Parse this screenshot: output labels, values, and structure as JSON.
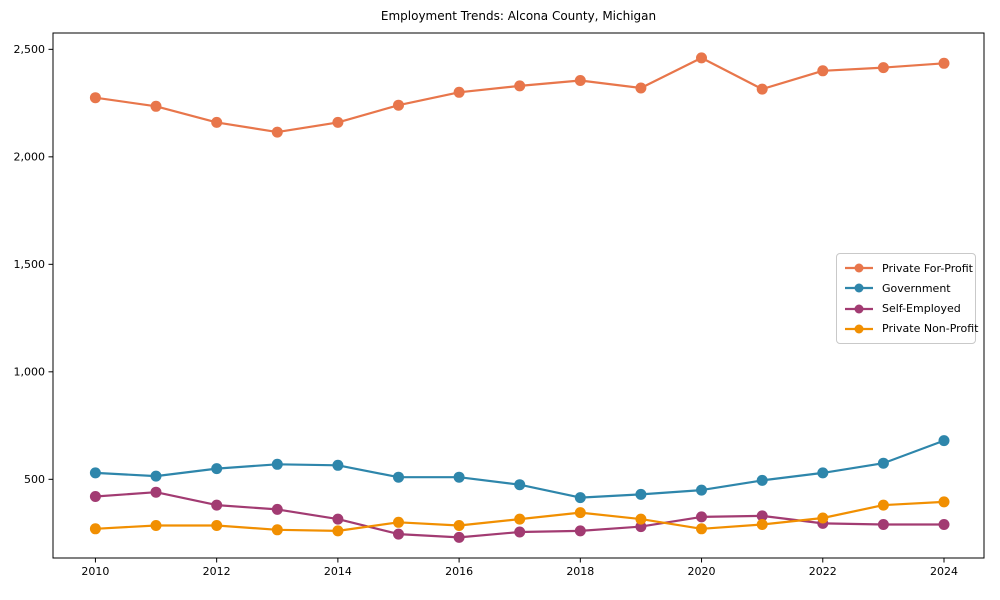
{
  "chart_data": {
    "type": "line",
    "title": "Employment Trends: Alcona County, Michigan",
    "xlabel": "",
    "ylabel": "",
    "x": [
      2010,
      2011,
      2012,
      2013,
      2014,
      2015,
      2016,
      2017,
      2018,
      2019,
      2020,
      2021,
      2022,
      2023,
      2024
    ],
    "x_ticks": [
      2010,
      2012,
      2014,
      2016,
      2018,
      2020,
      2022,
      2024
    ],
    "x_tick_labels": [
      "2010",
      "2012",
      "2014",
      "2016",
      "2018",
      "2020",
      "2022",
      "2024"
    ],
    "y_ticks": [
      500,
      1000,
      1500,
      2000,
      2500
    ],
    "y_tick_labels": [
      "500",
      "1,000",
      "1,500",
      "2,000",
      "2,500"
    ],
    "xlim": [
      2009.3,
      2024.66
    ],
    "ylim": [
      134,
      2576
    ],
    "grid": false,
    "marker": "circle",
    "legend_position": "center right",
    "series": [
      {
        "name": "Private For-Profit",
        "color": "#E8764B",
        "values": [
          2275,
          2235,
          2160,
          2115,
          2160,
          2240,
          2300,
          2330,
          2355,
          2320,
          2460,
          2315,
          2400,
          2415,
          2435
        ]
      },
      {
        "name": "Government",
        "color": "#2E86AB",
        "values": [
          530,
          515,
          550,
          570,
          565,
          510,
          510,
          475,
          415,
          430,
          450,
          495,
          530,
          575,
          680
        ]
      },
      {
        "name": "Self-Employed",
        "color": "#A23B72",
        "values": [
          420,
          440,
          380,
          360,
          315,
          245,
          230,
          255,
          260,
          280,
          325,
          330,
          295,
          290,
          290
        ]
      },
      {
        "name": "Private Non-Profit",
        "color": "#F18F01",
        "values": [
          270,
          285,
          285,
          265,
          260,
          300,
          285,
          315,
          345,
          315,
          270,
          290,
          320,
          380,
          395
        ]
      }
    ],
    "axis_color": "#000000",
    "text_color": "#000000"
  }
}
